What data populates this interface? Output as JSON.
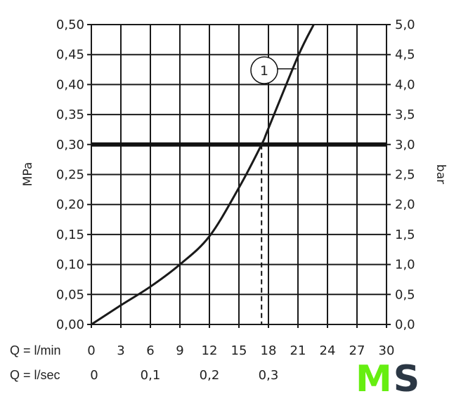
{
  "chart_data": {
    "type": "line",
    "xlabel": "Q = l/min",
    "x2label": "Q = l/sec",
    "ylabel": "MPa",
    "y2label": "bar",
    "xlim": [
      0,
      30
    ],
    "ylim": [
      0,
      0.5
    ],
    "y2lim": [
      0,
      5
    ],
    "grid": true,
    "x_ticks": [
      "0",
      "3",
      "6",
      "9",
      "12",
      "15",
      "18",
      "21",
      "24",
      "27",
      "30"
    ],
    "x_tick_values": [
      0,
      3,
      6,
      9,
      12,
      15,
      18,
      21,
      24,
      27,
      30
    ],
    "x2_ticks": [
      "0",
      "0,1",
      "0,2",
      "0,3"
    ],
    "x2_tick_values": [
      0,
      6,
      12,
      18
    ],
    "y_ticks": [
      "0,00",
      "0,05",
      "0,10",
      "0,15",
      "0,20",
      "0,25",
      "0,30",
      "0,35",
      "0,40",
      "0,45",
      "0,50"
    ],
    "y2_ticks": [
      "0,0",
      "0,5",
      "1,0",
      "1,5",
      "2,0",
      "2,5",
      "3,0",
      "3,5",
      "4,0",
      "4,5",
      "5,0"
    ],
    "series": [
      {
        "label": "1",
        "x": [
          0,
          3,
          6,
          9,
          12,
          15,
          17.3,
          18,
          21,
          22.6
        ],
        "y": [
          0,
          0.032,
          0.063,
          0.1,
          0.147,
          0.228,
          0.3,
          0.327,
          0.447,
          0.5
        ]
      }
    ],
    "reference_line": {
      "y": 0.3
    },
    "marker_line": {
      "x": 17.3,
      "from_y": 0,
      "to_y": 0.3
    },
    "colors": {
      "line": "#1a1a1a",
      "grid": "#1a1a1a"
    }
  },
  "logo": {
    "text": "MS",
    "color_m": "#66ee11",
    "color_s": "#2b3744"
  }
}
